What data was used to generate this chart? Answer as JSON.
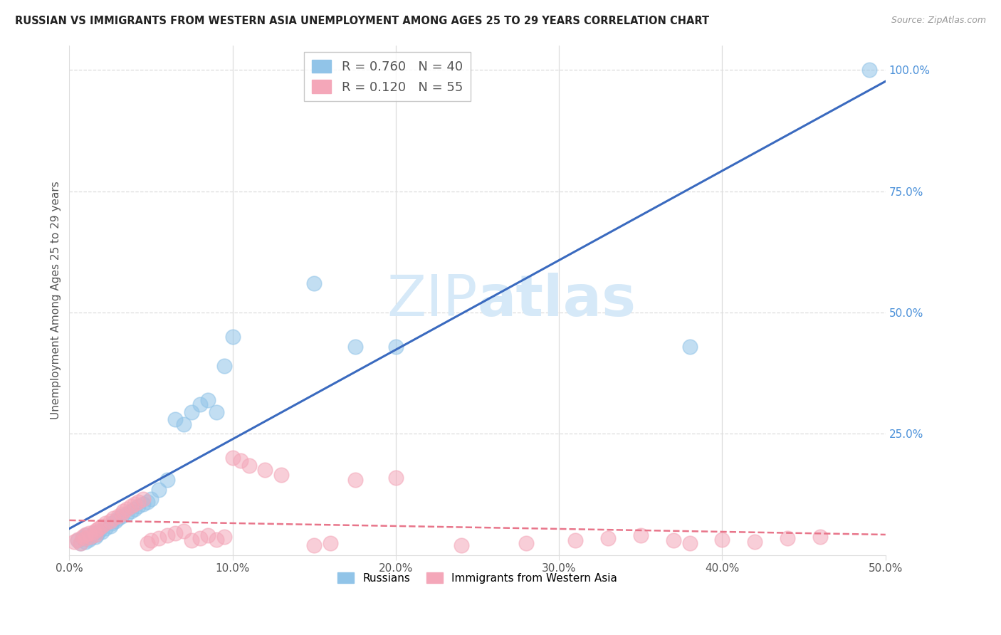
{
  "title": "RUSSIAN VS IMMIGRANTS FROM WESTERN ASIA UNEMPLOYMENT AMONG AGES 25 TO 29 YEARS CORRELATION CHART",
  "source": "Source: ZipAtlas.com",
  "ylabel": "Unemployment Among Ages 25 to 29 years",
  "legend_label_russians": "Russians",
  "legend_label_immigrants": "Immigrants from Western Asia",
  "blue_scatter_color": "#91c4e8",
  "pink_scatter_color": "#f4a7b9",
  "line_blue_color": "#3a6abf",
  "line_pink_color": "#e8758a",
  "watermark_color": "#d6e9f8",
  "title_color": "#222222",
  "axis_label_color": "#555555",
  "right_tick_color": "#4a90d9",
  "grid_color": "#dddddd",
  "xlim": [
    0.0,
    0.5
  ],
  "ylim": [
    0.0,
    1.05
  ],
  "xticks": [
    0.0,
    0.1,
    0.2,
    0.3,
    0.4,
    0.5
  ],
  "xtick_labels": [
    "0.0%",
    "10.0%",
    "20.0%",
    "30.0%",
    "40.0%",
    "50.0%"
  ],
  "yticks_right": [
    0.25,
    0.5,
    0.75,
    1.0
  ],
  "ytick_labels_right": [
    "25.0%",
    "50.0%",
    "75.0%",
    "100.0%"
  ],
  "russians_x": [
    0.005,
    0.007,
    0.008,
    0.01,
    0.01,
    0.012,
    0.013,
    0.015,
    0.016,
    0.017,
    0.018,
    0.02,
    0.022,
    0.025,
    0.026,
    0.028,
    0.03,
    0.032,
    0.035,
    0.038,
    0.04,
    0.042,
    0.045,
    0.048,
    0.05,
    0.055,
    0.06,
    0.065,
    0.07,
    0.075,
    0.08,
    0.085,
    0.09,
    0.095,
    0.1,
    0.15,
    0.175,
    0.2,
    0.38,
    0.49
  ],
  "russians_y": [
    0.03,
    0.025,
    0.035,
    0.04,
    0.028,
    0.032,
    0.036,
    0.045,
    0.038,
    0.042,
    0.05,
    0.048,
    0.055,
    0.06,
    0.065,
    0.07,
    0.075,
    0.08,
    0.085,
    0.09,
    0.095,
    0.1,
    0.105,
    0.11,
    0.115,
    0.135,
    0.155,
    0.28,
    0.27,
    0.295,
    0.31,
    0.32,
    0.295,
    0.39,
    0.45,
    0.56,
    0.43,
    0.43,
    0.43,
    1.0
  ],
  "immigrants_x": [
    0.003,
    0.005,
    0.007,
    0.008,
    0.01,
    0.01,
    0.012,
    0.013,
    0.015,
    0.016,
    0.017,
    0.018,
    0.02,
    0.022,
    0.025,
    0.027,
    0.03,
    0.032,
    0.033,
    0.035,
    0.038,
    0.04,
    0.042,
    0.045,
    0.048,
    0.05,
    0.055,
    0.06,
    0.065,
    0.07,
    0.075,
    0.08,
    0.085,
    0.09,
    0.095,
    0.1,
    0.105,
    0.11,
    0.12,
    0.13,
    0.15,
    0.16,
    0.175,
    0.2,
    0.24,
    0.28,
    0.31,
    0.33,
    0.35,
    0.37,
    0.38,
    0.4,
    0.42,
    0.44,
    0.46
  ],
  "immigrants_y": [
    0.028,
    0.032,
    0.025,
    0.038,
    0.042,
    0.035,
    0.045,
    0.038,
    0.048,
    0.042,
    0.052,
    0.055,
    0.06,
    0.065,
    0.07,
    0.075,
    0.08,
    0.085,
    0.09,
    0.095,
    0.1,
    0.105,
    0.11,
    0.115,
    0.025,
    0.03,
    0.035,
    0.04,
    0.045,
    0.05,
    0.03,
    0.035,
    0.04,
    0.032,
    0.038,
    0.2,
    0.195,
    0.185,
    0.175,
    0.165,
    0.02,
    0.025,
    0.155,
    0.16,
    0.02,
    0.025,
    0.03,
    0.035,
    0.04,
    0.03,
    0.025,
    0.032,
    0.028,
    0.035,
    0.038
  ]
}
